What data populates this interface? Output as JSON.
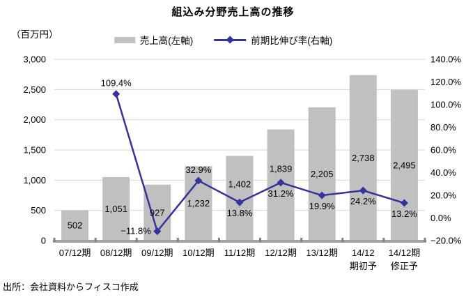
{
  "chart_data": {
    "type": "combo (bar + line, dual axis)",
    "title": "組込み分野売上高の推移",
    "unit_label": "（百万円）",
    "source": "出所：会社資料からフィスコ作成",
    "legend_position": "top",
    "grid": "horizontal",
    "categories": [
      [
        "07/12期"
      ],
      [
        "08/12期"
      ],
      [
        "09/12期"
      ],
      [
        "10/12期"
      ],
      [
        "11/12期"
      ],
      [
        "12/12期"
      ],
      [
        "13/12期"
      ],
      [
        "14/12",
        "期初予"
      ],
      [
        "14/12期",
        "修正予"
      ]
    ],
    "series": [
      {
        "name": "売上高(左軸)",
        "type": "bar",
        "axis": "left",
        "color": "#c0c0c0",
        "values": [
          502,
          1051,
          927,
          1232,
          1402,
          1839,
          2205,
          2738,
          2495
        ],
        "labels": [
          "502",
          "1,051",
          "927",
          "1,232",
          "1,402",
          "1,839",
          "2,205",
          "2,738",
          "2,495"
        ]
      },
      {
        "name": "前期比伸び率(右軸)",
        "type": "line",
        "axis": "right",
        "color": "#333399",
        "marker": "diamond",
        "values": [
          null,
          109.4,
          -11.8,
          32.9,
          13.8,
          31.2,
          19.9,
          24.2,
          13.2
        ],
        "labels": [
          null,
          "109.4%",
          "−11.8%",
          "32.9%",
          "13.8%",
          "31.2%",
          "19.9%",
          "24.2%",
          "13.2%"
        ],
        "label_positions": [
          null,
          "above",
          "left",
          "above",
          "below",
          "below",
          "below",
          "below",
          "below"
        ]
      }
    ],
    "left_axis": {
      "min": 0,
      "max": 3000,
      "step": 500,
      "tick_labels": [
        "0",
        "500",
        "1,000",
        "1,500",
        "2,000",
        "2,500",
        "3,000"
      ]
    },
    "right_axis": {
      "min": -20,
      "max": 140,
      "step": 20,
      "tick_labels": [
        "−20.0%",
        "0.0%",
        "20.0%",
        "40.0%",
        "60.0%",
        "80.0%",
        "100.0%",
        "120.0%",
        "140.0%"
      ]
    },
    "colors": {
      "gridline": "#d6d6d6",
      "baseline": "#a3a3a3",
      "axis_tick": "#7f7f7f",
      "text": "#000000"
    }
  }
}
